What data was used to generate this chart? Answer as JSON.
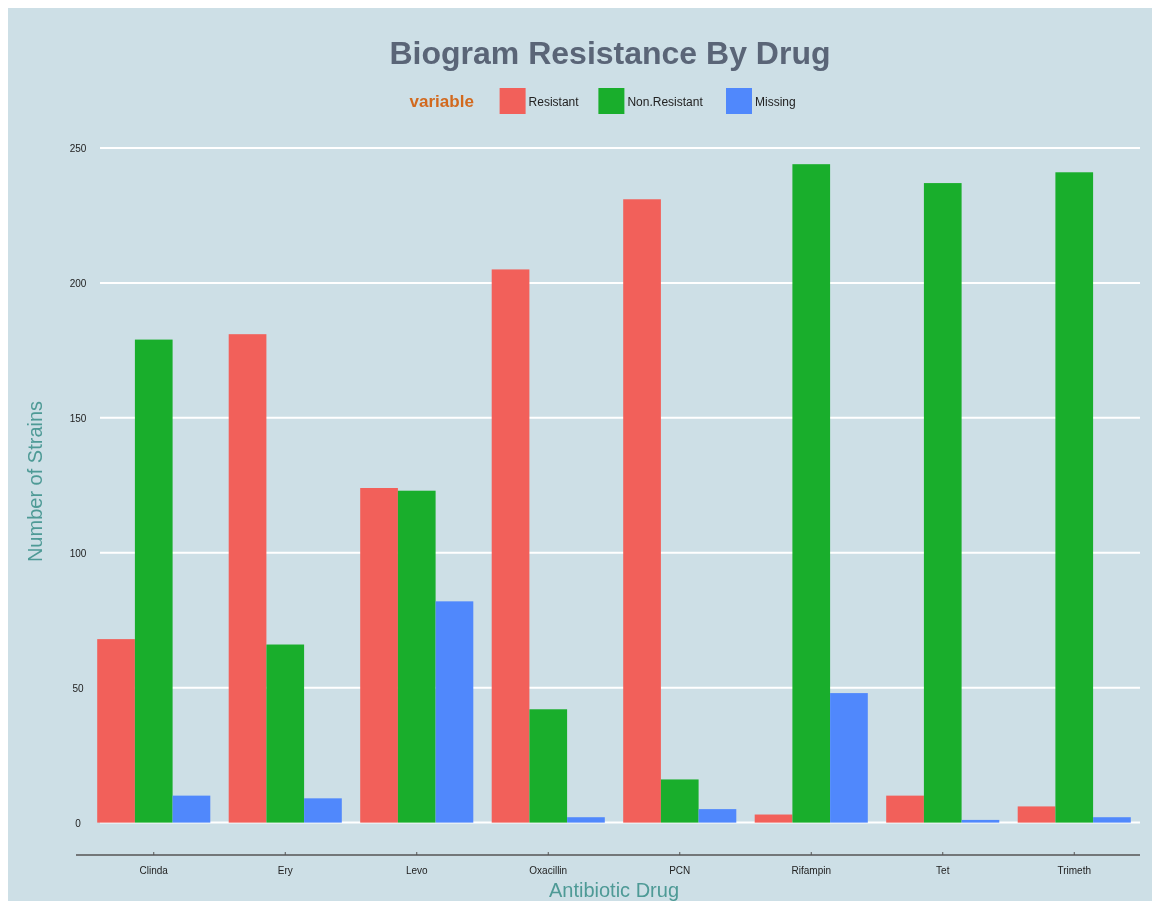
{
  "chart_data": {
    "type": "bar",
    "title": "Biogram Resistance By Drug",
    "xlabel": "Antibiotic Drug",
    "ylabel": "Number of Strains",
    "legend_title": "variable",
    "legend": "top",
    "categories": [
      "Clinda",
      "Ery",
      "Levo",
      "Oxacillin",
      "PCN",
      "Rifampin",
      "Tet",
      "Trimeth"
    ],
    "series": [
      {
        "name": "Resistant",
        "color": "#f2605a",
        "values": [
          68,
          181,
          124,
          205,
          231,
          3,
          10,
          6
        ]
      },
      {
        "name": "Non.Resistant",
        "color": "#19ae2c",
        "values": [
          179,
          66,
          123,
          42,
          16,
          244,
          237,
          241
        ]
      },
      {
        "name": "Missing",
        "color": "#5088fc",
        "values": [
          10,
          9,
          82,
          2,
          5,
          48,
          1,
          2
        ]
      }
    ],
    "ylim": [
      -12,
      250
    ],
    "yticks": [
      0,
      50,
      100,
      150,
      200,
      250
    ],
    "grid": "y"
  }
}
